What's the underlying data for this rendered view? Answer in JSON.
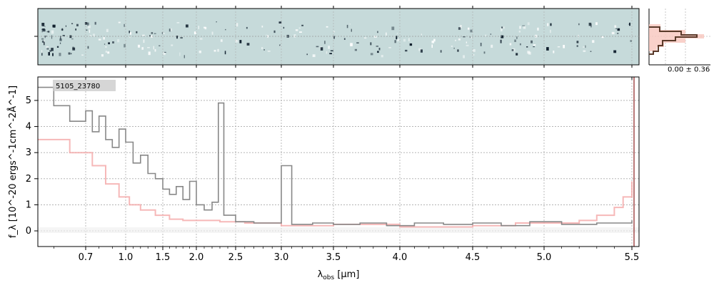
{
  "chart_data": [
    {
      "type": "line",
      "panel": "1d-spectrum",
      "annotation": "5105_23780",
      "xlabel_main": "λ",
      "xlabel_sub": "obs",
      "xlabel_unit": " [μm]",
      "ylabel": "f_λ [10^-20 ergs^-1cm^-2Å^-1]",
      "ylim": [
        -0.6,
        5.9
      ],
      "yticks": [
        0,
        1,
        2,
        3,
        4,
        5
      ],
      "xticks": [
        0.7,
        1.0,
        1.5,
        2.0,
        2.5,
        3.0,
        3.5,
        4.0,
        4.5,
        5.0,
        5.5
      ],
      "xtick_labels": [
        "0.7",
        "1.0",
        "1.5",
        "2.0",
        "2.5",
        "3.0",
        "3.5",
        "4.0",
        "4.5",
        "5.0",
        "5.5"
      ],
      "grid": true,
      "series": [
        {
          "color": "#888888",
          "x": [
            0.55,
            0.6,
            0.65,
            0.7,
            0.75,
            0.8,
            0.85,
            0.9,
            0.95,
            1.0,
            1.1,
            1.2,
            1.3,
            1.4,
            1.5,
            1.6,
            1.7,
            1.8,
            1.9,
            2.0,
            2.1,
            2.2,
            2.28,
            2.35,
            2.5,
            2.7,
            2.9,
            3.0,
            3.1,
            3.3,
            3.5,
            3.7,
            3.9,
            4.1,
            4.3,
            4.5,
            4.7,
            4.9,
            5.1,
            5.3,
            5.5
          ],
          "y": [
            5.5,
            4.8,
            4.2,
            4.6,
            3.8,
            4.4,
            3.5,
            3.2,
            3.9,
            3.4,
            2.6,
            2.9,
            2.2,
            2.0,
            1.6,
            1.4,
            1.7,
            1.2,
            1.9,
            1.0,
            0.8,
            1.1,
            4.9,
            0.6,
            0.35,
            0.3,
            0.3,
            2.5,
            0.25,
            0.3,
            0.25,
            0.3,
            0.2,
            0.3,
            0.25,
            0.3,
            0.2,
            0.35,
            0.25,
            0.3,
            0.4
          ]
        },
        {
          "color": "#f4a6a6",
          "x": [
            0.55,
            0.65,
            0.75,
            0.85,
            0.95,
            1.05,
            1.2,
            1.4,
            1.6,
            1.8,
            2.0,
            2.3,
            2.6,
            3.0,
            3.5,
            4.0,
            4.5,
            4.8,
            5.0,
            5.2,
            5.3,
            5.4,
            5.45,
            5.5
          ],
          "y": [
            3.5,
            3.0,
            2.5,
            1.8,
            1.3,
            1.0,
            0.8,
            0.6,
            0.45,
            0.4,
            0.4,
            0.35,
            0.3,
            0.2,
            0.25,
            0.15,
            0.2,
            0.3,
            0.3,
            0.4,
            0.6,
            0.9,
            1.3,
            1.9
          ]
        }
      ]
    },
    {
      "type": "heatmap",
      "panel": "2d-spectrum"
    },
    {
      "type": "line",
      "panel": "profile",
      "annotation": "0.00 ± 0.36"
    }
  ]
}
